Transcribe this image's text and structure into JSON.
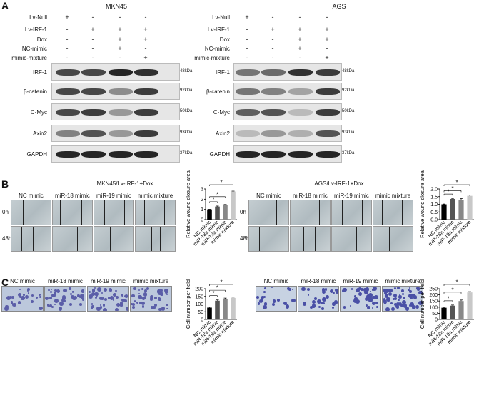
{
  "panels": {
    "A": "A",
    "B": "B",
    "C": "C"
  },
  "westernA": [
    {
      "title": "MKN45",
      "conditions": [
        {
          "label": "Lv-Null",
          "signs": [
            "+",
            "-",
            "-",
            "-"
          ]
        },
        {
          "label": "Lv-IRF-1",
          "signs": [
            "-",
            "+",
            "+",
            "+"
          ]
        },
        {
          "label": "Dox",
          "signs": [
            "-",
            "-",
            "+",
            "+"
          ]
        },
        {
          "label": "NC-mimic",
          "signs": [
            "-",
            "-",
            "+",
            "-"
          ]
        },
        {
          "label": "mimic-mixture",
          "signs": [
            "-",
            "-",
            "-",
            "+"
          ]
        }
      ],
      "proteins": [
        {
          "name": "IRF-1",
          "kda": "48kDa"
        },
        {
          "name": "β-catenin",
          "kda": "92kDa"
        },
        {
          "name": "C-Myc",
          "kda": "50kDa"
        },
        {
          "name": "Axin2",
          "kda": "93kDa"
        },
        {
          "name": "GAPDH",
          "kda": "37kDa"
        }
      ]
    },
    {
      "title": "AGS",
      "conditions": [
        {
          "label": "Lv-Null",
          "signs": [
            "+",
            "-",
            "-",
            "-"
          ]
        },
        {
          "label": "Lv-IRF-1",
          "signs": [
            "-",
            "+",
            "+",
            "+"
          ]
        },
        {
          "label": "Dox",
          "signs": [
            "-",
            "-",
            "+",
            "+"
          ]
        },
        {
          "label": "NC-mimic",
          "signs": [
            "-",
            "-",
            "+",
            "-"
          ]
        },
        {
          "label": "mimic-mixture",
          "signs": [
            "-",
            "-",
            "-",
            "+"
          ]
        }
      ],
      "proteins": [
        {
          "name": "IRF-1",
          "kda": "48kDa"
        },
        {
          "name": "β-catenin",
          "kda": "92kDa"
        },
        {
          "name": "C-Myc",
          "kda": "50kDa"
        },
        {
          "name": "Axin2",
          "kda": "93kDa"
        },
        {
          "name": "GAPDH",
          "kda": "37kDa"
        }
      ]
    }
  ],
  "woundB": [
    {
      "title": "MKN45/Lv-IRF-1+Dox",
      "columns": [
        "NC mimic",
        "miR-18 mimic",
        "miR-19 mimic",
        "mimic mixture"
      ],
      "rows": [
        "0h",
        "48h"
      ]
    },
    {
      "title": "AGS/Lv-IRF-1+Dox",
      "columns": [
        "NC mimic",
        "miR-18 mimic",
        "miR-19 mimic",
        "mimic mixture"
      ],
      "rows": [
        "0h",
        "48h"
      ]
    }
  ],
  "transwellC": [
    {
      "columns": [
        "NC mimic",
        "miR-18 mimic",
        "miR-19 mimic",
        "mimic mixture"
      ]
    },
    {
      "columns": [
        "NC mimic",
        "miR-18 mimic",
        "miR-19 mimic",
        "mimic mixture"
      ]
    }
  ],
  "chart_data": [
    {
      "type": "bar",
      "ylabel": "Relative wound closure area",
      "categories": [
        "NC mimic",
        "miR-18a mimic",
        "miR-19a mimic",
        "mimic mixture"
      ],
      "values": [
        1.0,
        1.28,
        1.42,
        2.75
      ],
      "errors": [
        0.02,
        0.05,
        0.06,
        0.04
      ],
      "ylim": [
        0,
        3
      ],
      "yticks": [
        "0",
        "1",
        "2",
        "3"
      ],
      "colors": [
        "#000000",
        "#555555",
        "#888888",
        "#c8c8c8"
      ],
      "significance": [
        "*",
        "*",
        "*"
      ]
    },
    {
      "type": "bar",
      "ylabel": "Relative wound closure area",
      "categories": [
        "NC mimic",
        "miR-18a mimic",
        "miR-19a mimic",
        "mimic mixture"
      ],
      "values": [
        1.0,
        1.35,
        1.3,
        1.55
      ],
      "errors": [
        0.02,
        0.04,
        0.08,
        0.05
      ],
      "ylim": [
        0,
        2.0
      ],
      "yticks": [
        "0.0",
        "0.5",
        "1.0",
        "1.5",
        "2.0"
      ],
      "colors": [
        "#000000",
        "#555555",
        "#888888",
        "#c8c8c8"
      ],
      "significance": [
        "*",
        "*",
        "*"
      ]
    },
    {
      "type": "bar",
      "ylabel": "Cell number per field",
      "categories": [
        "NC mimic",
        "miR-18a mimic",
        "miR-19a mimic",
        "mimic mixture"
      ],
      "values": [
        77,
        122,
        135,
        140
      ],
      "errors": [
        4,
        5,
        4,
        5
      ],
      "ylim": [
        0,
        200
      ],
      "yticks": [
        "0",
        "50",
        "100",
        "150",
        "200"
      ],
      "colors": [
        "#000000",
        "#555555",
        "#888888",
        "#c8c8c8"
      ],
      "significance": [
        "*",
        "*",
        "*"
      ]
    },
    {
      "type": "bar",
      "ylabel": "Cell number per field",
      "categories": [
        "NC mimic",
        "miR-18a mimic",
        "miR-19a mimic",
        "mimic mixture"
      ],
      "values": [
        95,
        112,
        150,
        220
      ],
      "errors": [
        4,
        5,
        8,
        6
      ],
      "ylim": [
        0,
        250
      ],
      "yticks": [
        "0",
        "50",
        "100",
        "150",
        "200",
        "250"
      ],
      "colors": [
        "#000000",
        "#555555",
        "#888888",
        "#c8c8c8"
      ],
      "significance": [
        "*",
        "*",
        "*"
      ]
    }
  ]
}
